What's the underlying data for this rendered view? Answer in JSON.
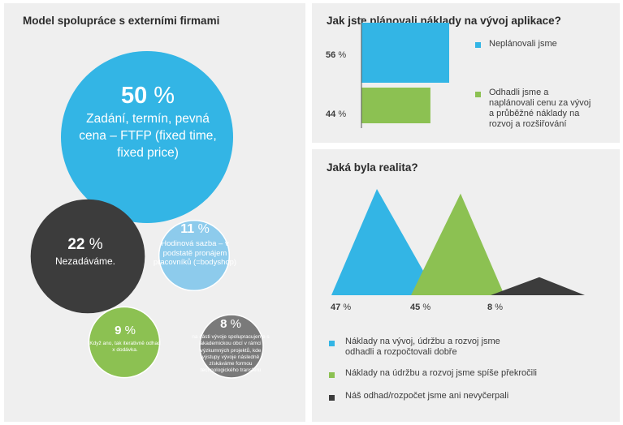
{
  "colors": {
    "blue": "#33b5e5",
    "green": "#8cc152",
    "dark": "#3c3c3c",
    "lightblue": "#8dcbec",
    "gray": "#7a7a7a",
    "panel": "#efefef"
  },
  "chart_data": [
    {
      "type": "bubble",
      "title": "Model spolupráce s externími firmami",
      "bubbles": [
        {
          "value": 50,
          "pct": "50",
          "unit": "%",
          "label": "Zadání, termín, pevná cena – FTFP (fixed time, fixed price)",
          "color": "blue"
        },
        {
          "value": 22,
          "pct": "22",
          "unit": "%",
          "label": "Nezadáváme.",
          "color": "dark"
        },
        {
          "value": 11,
          "pct": "11",
          "unit": "%",
          "label": "Hodinová sazba – v podstatě pronájem pracovníků (=bodyshop)",
          "color": "lightblue"
        },
        {
          "value": 9,
          "pct": "9",
          "unit": "%",
          "label": "Když ano, tak iterativně odhad x dodávka.",
          "color": "green"
        },
        {
          "value": 8,
          "pct": "8",
          "unit": "%",
          "label": "na části vývoje spolupracujeme s akademickou obcí v rámci výzkumných projektů, kde výstupy vývoje následně získáváme formou technologického transferu",
          "color": "gray"
        }
      ]
    },
    {
      "type": "bar",
      "orientation": "horizontal",
      "title": "Jak jste plánovali náklady na vývoj aplikace?",
      "categories": [
        "Neplánovali jsme",
        "Odhadli jsme a naplánovali cenu za vývoj a průběžné náklady na rozvoj a rozšiřování"
      ],
      "values": [
        56,
        44
      ],
      "unit": "%",
      "colors": [
        "blue",
        "green"
      ]
    },
    {
      "type": "area",
      "shape": "triangles",
      "title": "Jaká byla realita?",
      "values": [
        47,
        45,
        8
      ],
      "unit": "%",
      "series": [
        {
          "name": "Náklady na vývoj, údržbu a rozvoj jsme odhadli a rozpočtovali dobře",
          "value": 47,
          "color": "blue"
        },
        {
          "name": "Náklady na údržbu a rozvoj jsme spíše překročili",
          "value": 45,
          "color": "green"
        },
        {
          "name": "Náš odhad/rozpočet jsme ani nevyčerpali",
          "value": 8,
          "color": "dark"
        }
      ]
    }
  ]
}
